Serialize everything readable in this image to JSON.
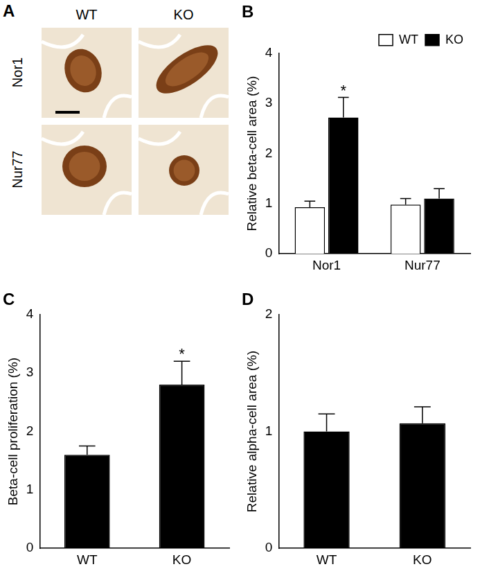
{
  "image_panel": {
    "label": "A",
    "columns": [
      "WT",
      "KO"
    ],
    "rows": [
      "Nor1",
      "Nur77"
    ]
  },
  "chart_data": [
    {
      "type": "bar",
      "title": "B",
      "categories": [
        "Nor1",
        "Nur77"
      ],
      "series": [
        {
          "name": "WT",
          "color": "#ffffff",
          "values": [
            0.93,
            0.98
          ],
          "errors": [
            0.12,
            0.12
          ]
        },
        {
          "name": "KO",
          "color": "#000000",
          "values": [
            2.72,
            1.1
          ],
          "errors": [
            0.4,
            0.2
          ]
        }
      ],
      "y_label": "Relative beta-cell area (%)",
      "ylim": [
        0,
        4
      ],
      "yticks": [
        0,
        1,
        2,
        3,
        4
      ],
      "grid": false,
      "legend": "upper right",
      "annotations": [
        {
          "category": "Nor1",
          "series": "KO",
          "text": "*"
        }
      ]
    },
    {
      "type": "bar",
      "title": "C",
      "categories": [
        "WT",
        "KO"
      ],
      "values": [
        1.6,
        2.8
      ],
      "errors": [
        0.15,
        0.4
      ],
      "color": "#000000",
      "y_label": "Beta-cell proliferation (%)",
      "ylim": [
        0,
        4
      ],
      "yticks": [
        0,
        1,
        2,
        3,
        4
      ],
      "grid": false,
      "annotations": [
        {
          "category": "KO",
          "text": "*"
        }
      ]
    },
    {
      "type": "bar",
      "title": "D",
      "categories": [
        "WT",
        "KO"
      ],
      "values": [
        1.0,
        1.07
      ],
      "errors": [
        0.15,
        0.14
      ],
      "color": "#000000",
      "y_label": "Relative alpha-cell area (%)",
      "ylim": [
        0,
        2
      ],
      "yticks": [
        0,
        1,
        2
      ],
      "grid": false
    }
  ]
}
